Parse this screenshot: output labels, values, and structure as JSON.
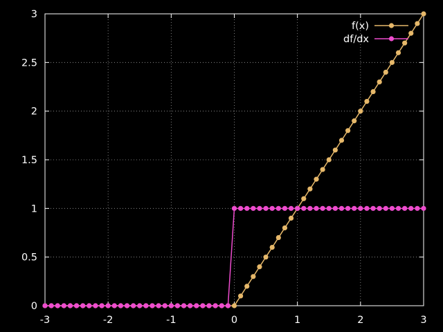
{
  "chart_data": {
    "type": "line",
    "title": "",
    "xlabel": "",
    "ylabel": "",
    "xlim": [
      -3,
      3
    ],
    "ylim": [
      0,
      3
    ],
    "xticks": [
      -3,
      -2,
      -1,
      0,
      1,
      2,
      3
    ],
    "yticks": [
      0,
      0.5,
      1,
      1.5,
      2,
      2.5,
      3
    ],
    "xtick_labels": [
      "-3",
      "-2",
      "-1",
      "0",
      "1",
      "2",
      "3"
    ],
    "ytick_labels": [
      "0",
      "0.5",
      "1",
      "1.5",
      "2",
      "2.5",
      "3"
    ],
    "grid": true,
    "legend_position": "top-right",
    "x": [
      -3.0,
      -2.9,
      -2.8,
      -2.7,
      -2.6,
      -2.5,
      -2.4,
      -2.3,
      -2.2,
      -2.1,
      -2.0,
      -1.9,
      -1.8,
      -1.7,
      -1.6,
      -1.5,
      -1.4,
      -1.3,
      -1.2,
      -1.1,
      -1.0,
      -0.9,
      -0.8,
      -0.7,
      -0.6,
      -0.5,
      -0.4,
      -0.3,
      -0.2,
      -0.1,
      0.0,
      0.1,
      0.2,
      0.3,
      0.4,
      0.5,
      0.6,
      0.7,
      0.8,
      0.9,
      1.0,
      1.1,
      1.2,
      1.3,
      1.4,
      1.5,
      1.6,
      1.7,
      1.8,
      1.9,
      2.0,
      2.1,
      2.2,
      2.3,
      2.4,
      2.5,
      2.6,
      2.7,
      2.8,
      2.9,
      3.0
    ],
    "series": [
      {
        "name": "f(x)",
        "color": "#e6b86a",
        "values": [
          0,
          0,
          0,
          0,
          0,
          0,
          0,
          0,
          0,
          0,
          0,
          0,
          0,
          0,
          0,
          0,
          0,
          0,
          0,
          0,
          0,
          0,
          0,
          0,
          0,
          0,
          0,
          0,
          0,
          0,
          0,
          0.1,
          0.2,
          0.3,
          0.4,
          0.5,
          0.6,
          0.7,
          0.8,
          0.9,
          1.0,
          1.1,
          1.2,
          1.3,
          1.4,
          1.5,
          1.6,
          1.7,
          1.8,
          1.9,
          2.0,
          2.1,
          2.2,
          2.3,
          2.4,
          2.5,
          2.6,
          2.7,
          2.8,
          2.9,
          3.0
        ]
      },
      {
        "name": "df/dx",
        "color": "#ee4cce",
        "values": [
          0,
          0,
          0,
          0,
          0,
          0,
          0,
          0,
          0,
          0,
          0,
          0,
          0,
          0,
          0,
          0,
          0,
          0,
          0,
          0,
          0,
          0,
          0,
          0,
          0,
          0,
          0,
          0,
          0,
          0,
          1,
          1,
          1,
          1,
          1,
          1,
          1,
          1,
          1,
          1,
          1,
          1,
          1,
          1,
          1,
          1,
          1,
          1,
          1,
          1,
          1,
          1,
          1,
          1,
          1,
          1,
          1,
          1,
          1,
          1,
          1
        ]
      }
    ]
  }
}
